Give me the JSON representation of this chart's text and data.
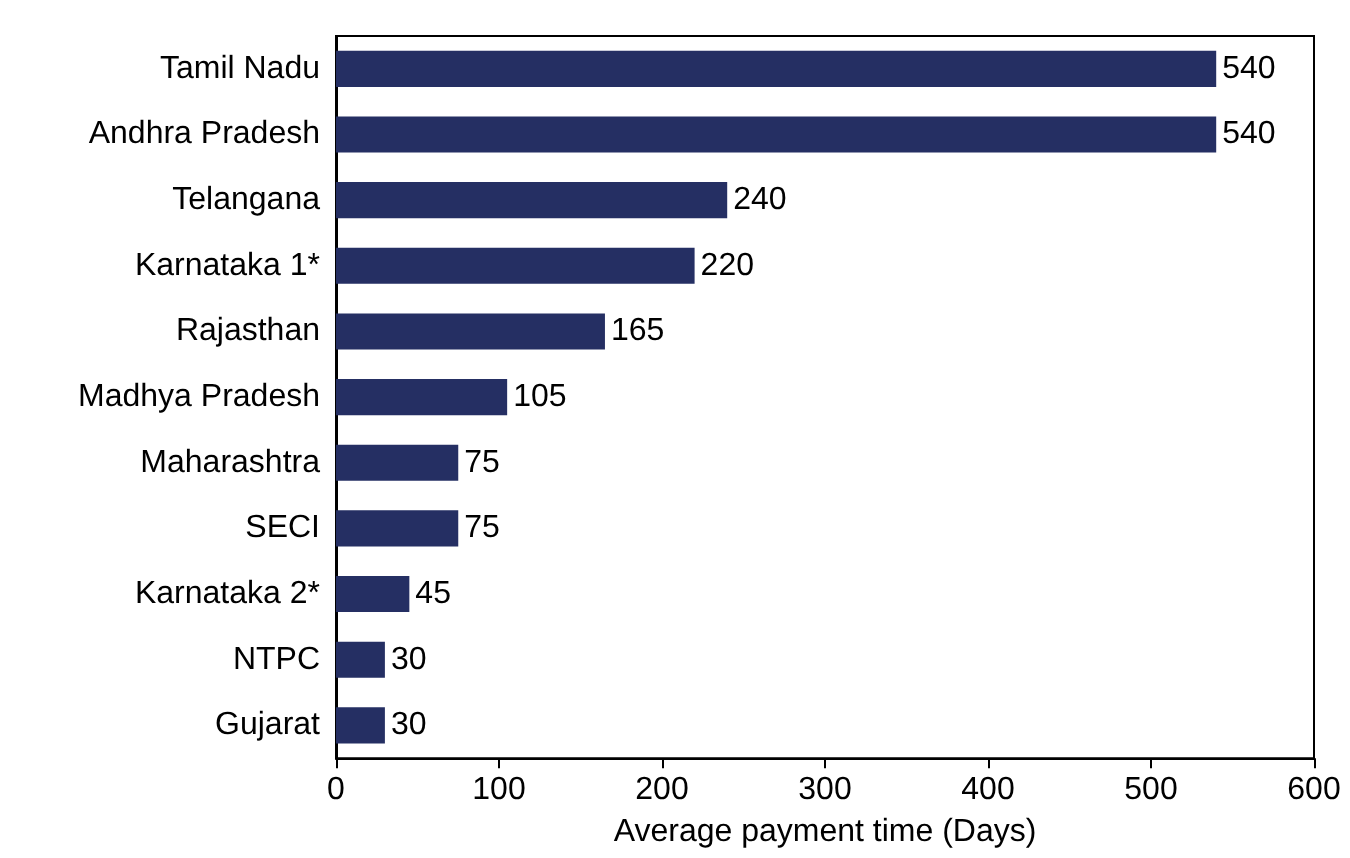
{
  "chart_data": {
    "type": "bar",
    "orientation": "horizontal",
    "xlabel": "Average payment time (Days)",
    "categories": [
      "Tamil Nadu",
      "Andhra Pradesh",
      "Telangana",
      "Karnataka 1*",
      "Rajasthan",
      "Madhya Pradesh",
      "Maharashtra",
      "SECI",
      "Karnataka 2*",
      "NTPC",
      "Gujarat"
    ],
    "values": [
      540,
      540,
      240,
      220,
      165,
      105,
      75,
      75,
      45,
      30,
      30
    ],
    "color": "#252f63",
    "xlim": [
      0,
      600
    ],
    "xticks": [
      0,
      100,
      200,
      300,
      400,
      500,
      600
    ],
    "data_labels": true,
    "grid": false
  }
}
